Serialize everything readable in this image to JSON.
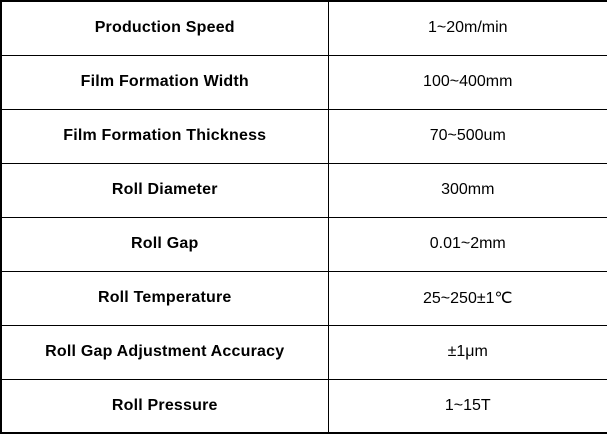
{
  "table": {
    "name": "machine-specification-table",
    "colors": {
      "border": "#000000",
      "background": "#ffffff",
      "text": "#000000"
    },
    "rows": [
      {
        "label": "Production Speed",
        "value": "1~20m/min"
      },
      {
        "label": "Film Formation Width",
        "value": "100~400mm"
      },
      {
        "label": "Film Formation Thickness",
        "value": "70~500um"
      },
      {
        "label": "Roll Diameter",
        "value": "300mm"
      },
      {
        "label": "Roll Gap",
        "value": "0.01~2mm"
      },
      {
        "label": "Roll Temperature",
        "value": "25~250±1℃"
      },
      {
        "label": "Roll Gap Adjustment Accuracy",
        "value": "±1μm"
      },
      {
        "label": "Roll Pressure",
        "value": "1~15T"
      }
    ]
  }
}
